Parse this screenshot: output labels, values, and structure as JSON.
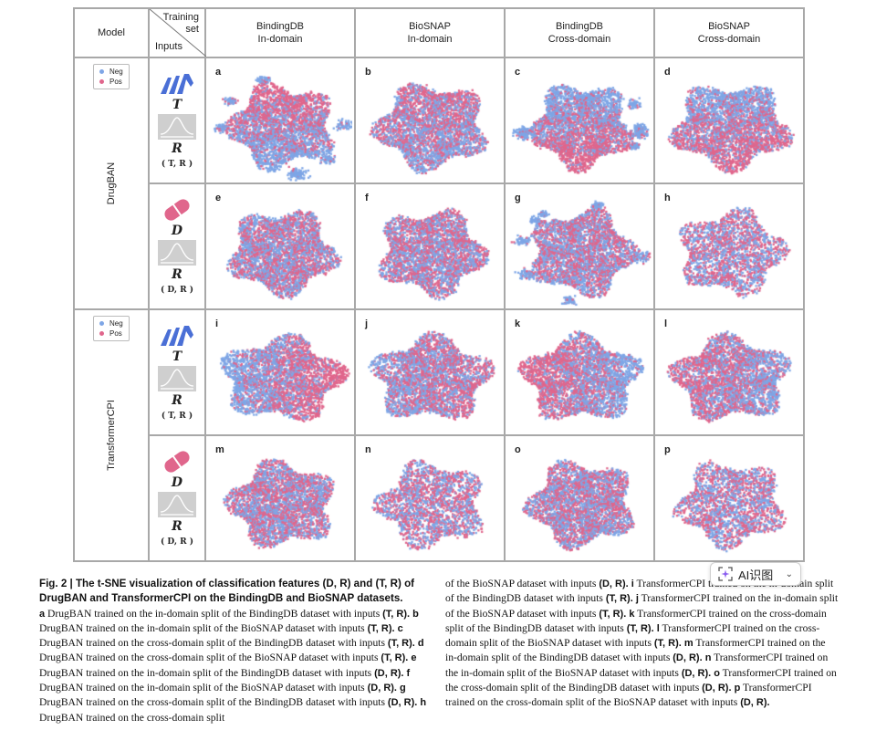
{
  "colors": {
    "neg": "#7ea6e6",
    "pos": "#e0668c",
    "protein_icon": "#4a6fd6",
    "drug_icon": "#e0668c",
    "grid": "#a8a8a8"
  },
  "header": {
    "model": "Model",
    "training_set": "Training\nset",
    "inputs": "Inputs",
    "columns": [
      {
        "line1": "BindingDB",
        "line2": "In-domain"
      },
      {
        "line1": "BioSNAP",
        "line2": "In-domain"
      },
      {
        "line1": "BindingDB",
        "line2": "Cross-domain"
      },
      {
        "line1": "BioSNAP",
        "line2": "Cross-domain"
      }
    ]
  },
  "legend": {
    "neg": "Neg",
    "pos": "Pos"
  },
  "models": [
    {
      "name": "DrugBAN",
      "rows": [
        {
          "icon": "protein-helix-icon",
          "sym1": "T",
          "sym2": "R",
          "pair": "( T, R )",
          "panels": [
            "a",
            "b",
            "c",
            "d"
          ]
        },
        {
          "icon": "drug-capsule-icon",
          "sym1": "D",
          "sym2": "R",
          "pair": "( D, R )",
          "panels": [
            "e",
            "f",
            "g",
            "h"
          ]
        }
      ]
    },
    {
      "name": "TransformerCPI",
      "rows": [
        {
          "icon": "protein-helix-icon",
          "sym1": "T",
          "sym2": "R",
          "pair": "( T, R )",
          "panels": [
            "i",
            "j",
            "k",
            "l"
          ]
        },
        {
          "icon": "drug-capsule-icon",
          "sym1": "D",
          "sym2": "R",
          "pair": "( D, R )",
          "panels": [
            "m",
            "n",
            "o",
            "p"
          ]
        }
      ]
    }
  ],
  "chart_data": {
    "type": "scatter",
    "title": "t-SNE visualization of classification features",
    "legend": [
      "Neg",
      "Pos"
    ],
    "legend_placement": "top-left of model row",
    "panels": [
      {
        "label": "a",
        "model": "DrugBAN",
        "inputs": "(T, R)",
        "dataset": "BindingDB In-domain",
        "pattern": "pos-top-neg-bottom with neg islands"
      },
      {
        "label": "b",
        "model": "DrugBAN",
        "inputs": "(T, R)",
        "dataset": "BioSNAP In-domain",
        "pattern": "pos-top mixed"
      },
      {
        "label": "c",
        "model": "DrugBAN",
        "inputs": "(T, R)",
        "dataset": "BindingDB Cross-domain",
        "pattern": "neg-top-pos-bottom with neg islands"
      },
      {
        "label": "d",
        "model": "DrugBAN",
        "inputs": "(T, R)",
        "dataset": "BioSNAP Cross-domain",
        "pattern": "neg-top-pos-bottom"
      },
      {
        "label": "e",
        "model": "DrugBAN",
        "inputs": "(D, R)",
        "dataset": "BindingDB In-domain",
        "pattern": "mixed"
      },
      {
        "label": "f",
        "model": "DrugBAN",
        "inputs": "(D, R)",
        "dataset": "BioSNAP In-domain",
        "pattern": "mixed"
      },
      {
        "label": "g",
        "model": "DrugBAN",
        "inputs": "(D, R)",
        "dataset": "BindingDB Cross-domain",
        "pattern": "mixed"
      },
      {
        "label": "h",
        "model": "DrugBAN",
        "inputs": "(D, R)",
        "dataset": "BioSNAP Cross-domain",
        "pattern": "mixed"
      },
      {
        "label": "i",
        "model": "TransformerCPI",
        "inputs": "(T, R)",
        "dataset": "BindingDB In-domain",
        "pattern": "neg-left-pos-right"
      },
      {
        "label": "j",
        "model": "TransformerCPI",
        "inputs": "(T, R)",
        "dataset": "BioSNAP In-domain",
        "pattern": "mixed, pos-right"
      },
      {
        "label": "k",
        "model": "TransformerCPI",
        "inputs": "(T, R)",
        "dataset": "BindingDB Cross-domain",
        "pattern": "neg-left-pos-right"
      },
      {
        "label": "l",
        "model": "TransformerCPI",
        "inputs": "(T, R)",
        "dataset": "BioSNAP Cross-domain",
        "pattern": "pos-left mixed"
      },
      {
        "label": "m",
        "model": "TransformerCPI",
        "inputs": "(D, R)",
        "dataset": "BindingDB In-domain",
        "pattern": "mixed"
      },
      {
        "label": "n",
        "model": "TransformerCPI",
        "inputs": "(D, R)",
        "dataset": "BioSNAP In-domain",
        "pattern": "mixed"
      },
      {
        "label": "o",
        "model": "TransformerCPI",
        "inputs": "(D, R)",
        "dataset": "BindingDB Cross-domain",
        "pattern": "mixed"
      },
      {
        "label": "p",
        "model": "TransformerCPI",
        "inputs": "(D, R)",
        "dataset": "BioSNAP Cross-domain",
        "pattern": "mixed"
      }
    ]
  },
  "caption": {
    "title": "Fig. 2 | The t-SNE visualization of classification features (D, R) and (T, R) of DrugBAN and TransformerCPI on the BindingDB and BioSNAP datasets.",
    "left": [
      {
        "b": "a",
        "t": " DrugBAN trained on the in-domain split of the BindingDB dataset with inputs "
      },
      {
        "b": "(T, R).",
        "t": ""
      },
      {
        "b": " b",
        "t": " DrugBAN trained on the in-domain split of the BioSNAP dataset with inputs "
      },
      {
        "b": "(T, R).",
        "t": ""
      },
      {
        "b": " c",
        "t": " DrugBAN trained on the cross-domain split of the BindingDB dataset with inputs "
      },
      {
        "b": "(T, R).",
        "t": ""
      },
      {
        "b": " d",
        "t": " DrugBAN trained on the cross-domain split of the BioSNAP dataset with inputs "
      },
      {
        "b": "(T, R).",
        "t": ""
      },
      {
        "b": " e",
        "t": " DrugBAN trained on the in-domain split of the BindingDB dataset with inputs "
      },
      {
        "b": "(D, R).",
        "t": ""
      },
      {
        "b": " f",
        "t": " DrugBAN trained on the in-domain split of the BioSNAP dataset with inputs "
      },
      {
        "b": "(D, R).",
        "t": ""
      },
      {
        "b": " g",
        "t": " DrugBAN trained on the cross-domain split of the BindingDB dataset with inputs "
      },
      {
        "b": "(D, R).",
        "t": ""
      },
      {
        "b": " h",
        "t": " DrugBAN trained on the cross-domain split"
      }
    ],
    "right": [
      {
        "b": "",
        "t": "of the BioSNAP dataset with inputs "
      },
      {
        "b": "(D, R).",
        "t": ""
      },
      {
        "b": " i",
        "t": " TransformerCPI trained on the in-domain split of the BindingDB dataset with inputs "
      },
      {
        "b": "(T, R).",
        "t": ""
      },
      {
        "b": " j",
        "t": " TransformerCPI trained on the in-domain split of the BioSNAP dataset with inputs "
      },
      {
        "b": "(T, R).",
        "t": ""
      },
      {
        "b": " k",
        "t": " TransformerCPI trained on the cross-domain split of the BindingDB dataset with inputs "
      },
      {
        "b": "(T, R).",
        "t": ""
      },
      {
        "b": " l",
        "t": " TransformerCPI trained on the cross-domain split of the BioSNAP dataset with inputs "
      },
      {
        "b": "(T, R).",
        "t": ""
      },
      {
        "b": " m",
        "t": " TransformerCPI trained on the in-domain split of the BindingDB dataset with inputs "
      },
      {
        "b": "(D, R).",
        "t": ""
      },
      {
        "b": " n",
        "t": " TransformerCPI trained on the in-domain split of the BioSNAP dataset with inputs "
      },
      {
        "b": "(D, R).",
        "t": ""
      },
      {
        "b": " o",
        "t": " TransformerCPI trained on the cross-domain split of the BindingDB dataset with inputs "
      },
      {
        "b": "(D, R).",
        "t": ""
      },
      {
        "b": " p",
        "t": " TransformerCPI trained on the cross-domain split of the BioSNAP dataset with inputs "
      },
      {
        "b": "(D, R).",
        "t": ""
      }
    ]
  },
  "overlay": {
    "ai_button_label": "AI识图"
  }
}
